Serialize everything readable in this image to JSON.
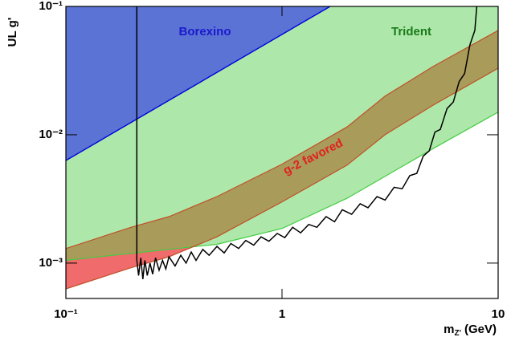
{
  "chart_data": {
    "type": "line",
    "xlog": true,
    "ylog": true,
    "xlabel": {
      "text": "m",
      "sub": "Z'",
      "unit": "(GeV)"
    },
    "ylabel": "UL  g'",
    "xlim": [
      0.1,
      10
    ],
    "ylim": [
      0.00053,
      0.1
    ],
    "xticks": [
      {
        "value": 0.1,
        "label": "10⁻¹"
      },
      1,
      10
    ],
    "yticks": [
      {
        "value": 0.001,
        "label": "10⁻³"
      },
      {
        "value": 0.01,
        "label": "10⁻²"
      },
      {
        "value": 0.1,
        "label": "10⁻¹"
      }
    ],
    "regions": [
      {
        "label": "Trident",
        "color": "#ade8aa",
        "line_color": "#44cc44",
        "label_color": "#1a7a1a",
        "x": [
          0.1,
          0.2,
          0.5,
          1,
          2,
          5,
          10
        ],
        "lower": [
          0.00105,
          0.00119,
          0.0014,
          0.00186,
          0.0032,
          0.0078,
          0.015
        ]
      },
      {
        "label": "g-2 favored",
        "color": "#f06b6b",
        "overlap_color": "#a99b59",
        "line_color": "#c0502a",
        "label_color": "#e02020",
        "x": [
          0.1,
          0.2,
          0.3,
          0.5,
          1,
          2,
          3,
          5,
          10
        ],
        "upper": [
          0.0013,
          0.0019,
          0.0023,
          0.0033,
          0.0059,
          0.0115,
          0.02,
          0.034,
          0.065
        ],
        "lower": [
          0.00063,
          0.00092,
          0.00112,
          0.0016,
          0.003,
          0.0058,
          0.01,
          0.017,
          0.033
        ]
      },
      {
        "label": "Borexino",
        "color": "#5b73d5",
        "line_color": "#0000dd",
        "label_color": "#1a1acc",
        "x": [
          0.1,
          1.67
        ],
        "lower": [
          0.0063,
          0.1
        ]
      }
    ],
    "series": [
      {
        "color": "#000000",
        "x": [
          0.213,
          0.213,
          0.217,
          0.222,
          0.227,
          0.232,
          0.238,
          0.245,
          0.252,
          0.26,
          0.27,
          0.28,
          0.29,
          0.3,
          0.32,
          0.34,
          0.36,
          0.38,
          0.4,
          0.43,
          0.46,
          0.5,
          0.54,
          0.58,
          0.63,
          0.68,
          0.74,
          0.8,
          0.87,
          0.95,
          1.03,
          1.12,
          1.22,
          1.33,
          1.45,
          1.6,
          1.75,
          1.9,
          2.1,
          2.3,
          2.5,
          2.75,
          3.0,
          3.3,
          3.6,
          3.9,
          4.2,
          4.5,
          4.8,
          5.1,
          5.4,
          5.8,
          6.2,
          6.6,
          7.0,
          7.4,
          7.8,
          8.0
        ],
        "values": [
          0.1,
          0.00105,
          0.0008,
          0.0011,
          0.00075,
          0.00105,
          0.0008,
          0.001,
          0.00082,
          0.0011,
          0.00088,
          0.00105,
          0.0009,
          0.00112,
          0.00095,
          0.00115,
          0.001,
          0.00122,
          0.00105,
          0.00128,
          0.00115,
          0.00135,
          0.0012,
          0.00142,
          0.0013,
          0.0015,
          0.00138,
          0.0016,
          0.00148,
          0.0017,
          0.00158,
          0.0019,
          0.00172,
          0.002,
          0.0019,
          0.0023,
          0.0021,
          0.0026,
          0.0024,
          0.0029,
          0.0027,
          0.0033,
          0.0031,
          0.0039,
          0.0038,
          0.0048,
          0.005,
          0.0068,
          0.0075,
          0.0105,
          0.011,
          0.016,
          0.018,
          0.026,
          0.03,
          0.05,
          0.065,
          0.11
        ]
      }
    ]
  }
}
